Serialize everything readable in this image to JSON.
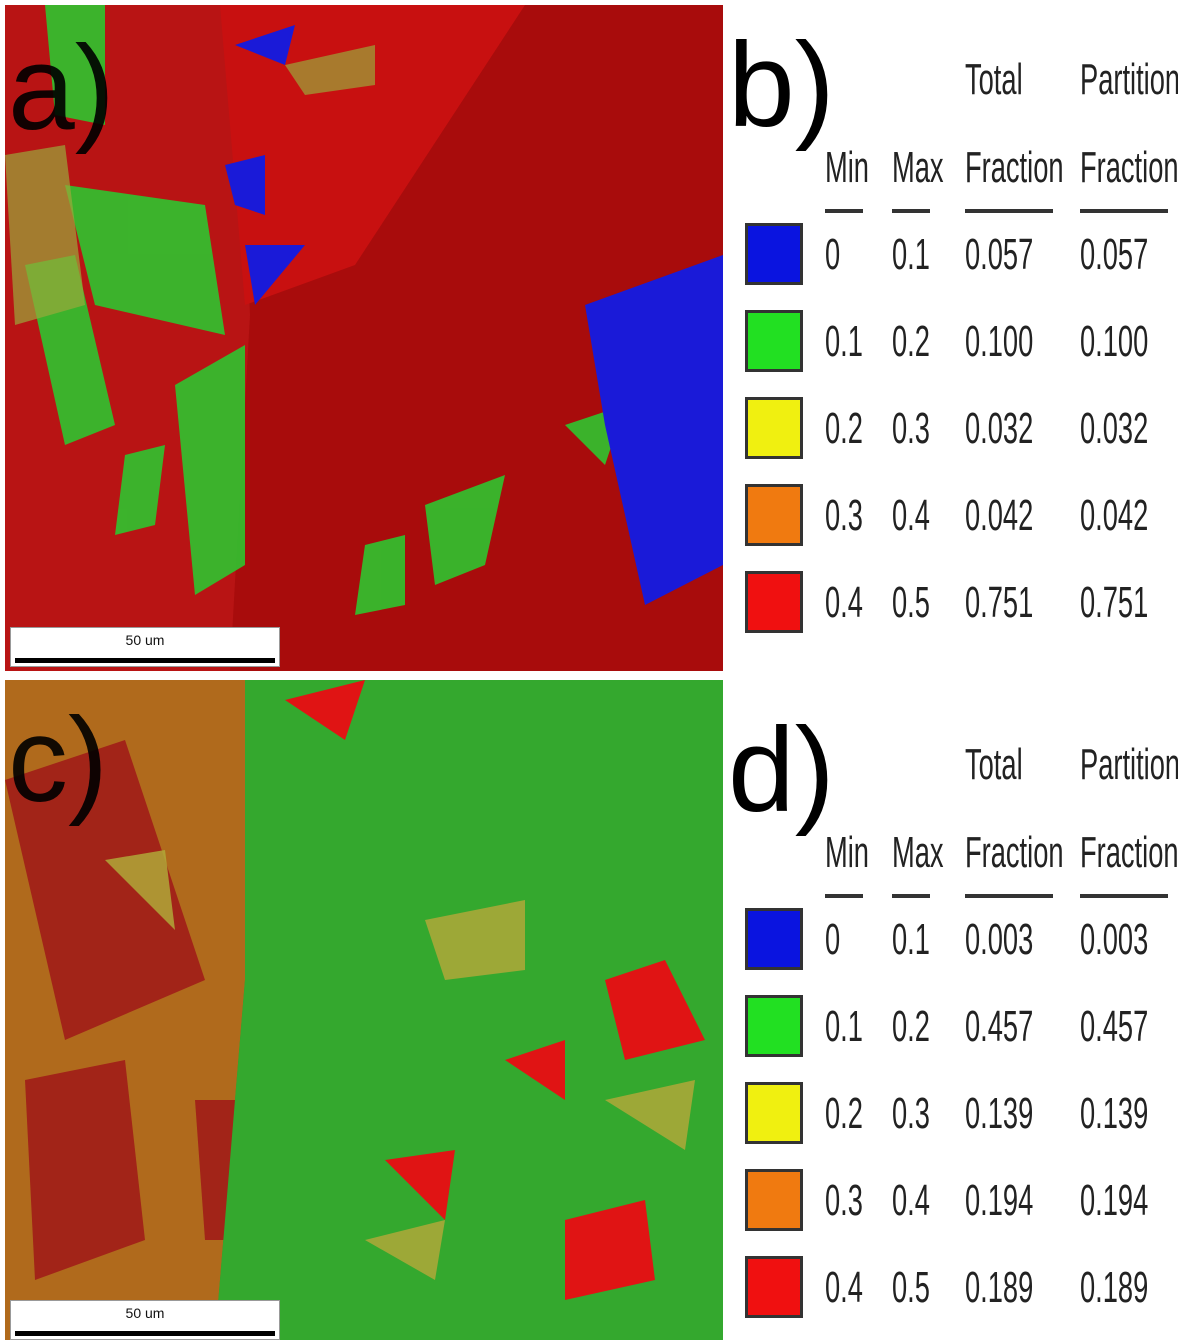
{
  "panels": [
    {
      "label": "a)",
      "scale_bar": "50 um"
    },
    {
      "label": "c)",
      "scale_bar": "50 um"
    }
  ],
  "tables": [
    {
      "label": "b)",
      "header_top": [
        "Total",
        "Partition"
      ],
      "headers": [
        "Min",
        "Max",
        "Fraction",
        "Fraction"
      ],
      "swatch_colors": [
        "#0a14e0",
        "#22e022",
        "#f0f010",
        "#f07a10",
        "#f01010"
      ],
      "rows": [
        [
          "0",
          "0.1",
          "0.057",
          "0.057"
        ],
        [
          "0.1",
          "0.2",
          "0.100",
          "0.100"
        ],
        [
          "0.2",
          "0.3",
          "0.032",
          "0.032"
        ],
        [
          "0.3",
          "0.4",
          "0.042",
          "0.042"
        ],
        [
          "0.4",
          "0.5",
          "0.751",
          "0.751"
        ]
      ]
    },
    {
      "label": "d)",
      "header_top": [
        "Total",
        "Partition"
      ],
      "headers": [
        "Min",
        "Max",
        "Fraction",
        "Fraction"
      ],
      "swatch_colors": [
        "#0a14e0",
        "#22e022",
        "#f0f010",
        "#f07a10",
        "#f01010"
      ],
      "rows": [
        [
          "0",
          "0.1",
          "0.003",
          "0.003"
        ],
        [
          "0.1",
          "0.2",
          "0.457",
          "0.457"
        ],
        [
          "0.2",
          "0.3",
          "0.139",
          "0.139"
        ],
        [
          "0.3",
          "0.4",
          "0.194",
          "0.194"
        ],
        [
          "0.4",
          "0.5",
          "0.189",
          "0.189"
        ]
      ]
    }
  ]
}
